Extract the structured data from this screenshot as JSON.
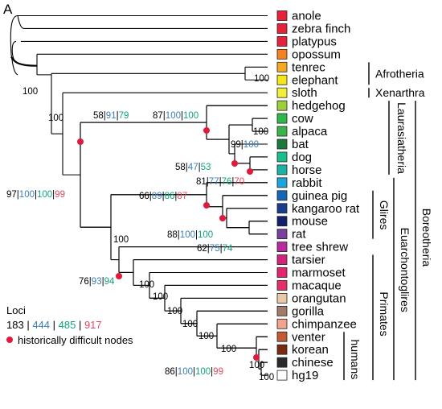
{
  "panel_label": "A",
  "colors": {
    "c183": "#000000",
    "c444": "#3b7dbd",
    "c485": "#10a37f",
    "c917": "#e8475f",
    "node_dot": "#e01a3c"
  },
  "taxa": [
    {
      "name": "anole",
      "color": "#e8203a"
    },
    {
      "name": "zebra finch",
      "color": "#e8203a"
    },
    {
      "name": "platypus",
      "color": "#e8203a"
    },
    {
      "name": "opossum",
      "color": "#f58220"
    },
    {
      "name": "tenrec",
      "color": "#f7a823"
    },
    {
      "name": "elephant",
      "color": "#f5e618"
    },
    {
      "name": "sloth",
      "color": "#f2ee3a"
    },
    {
      "name": "hedgehog",
      "color": "#9ccf3c"
    },
    {
      "name": "cow",
      "color": "#2eb84a"
    },
    {
      "name": "alpaca",
      "color": "#39b44a"
    },
    {
      "name": "bat",
      "color": "#1a7a3a"
    },
    {
      "name": "dog",
      "color": "#17c08b"
    },
    {
      "name": "horse",
      "color": "#19b3a6"
    },
    {
      "name": "rabbit",
      "color": "#1da3dd"
    },
    {
      "name": "guinea pig",
      "color": "#1466b8"
    },
    {
      "name": "kangaroo rat",
      "color": "#1a3c8c"
    },
    {
      "name": "mouse",
      "color": "#141f6e"
    },
    {
      "name": "rat",
      "color": "#7b3fa0"
    },
    {
      "name": "tree shrew",
      "color": "#b92a9d"
    },
    {
      "name": "tarsier",
      "color": "#d4237a"
    },
    {
      "name": "marmoset",
      "color": "#e4246c"
    },
    {
      "name": "macaque",
      "color": "#e62e6b"
    },
    {
      "name": "orangutan",
      "color": "#e8c9a8"
    },
    {
      "name": "gorilla",
      "color": "#a07a6a"
    },
    {
      "name": "chimpanzee",
      "color": "#f2a48c"
    },
    {
      "name": "venter",
      "color": "#c45a34"
    },
    {
      "name": "korean",
      "color": "#7a2a10"
    },
    {
      "name": "chinese",
      "color": "#2a2a2a"
    },
    {
      "name": "hg19",
      "color": "#ffffff"
    }
  ],
  "support": [
    {
      "id": "amniota",
      "values": [
        {
          "t": "100",
          "c": "c183"
        }
      ]
    },
    {
      "id": "eutheria",
      "values": [
        {
          "t": "100",
          "c": "c183"
        }
      ]
    },
    {
      "id": "afrotheria",
      "values": [
        {
          "t": "100",
          "c": "c183"
        }
      ]
    },
    {
      "id": "boreo_sloth",
      "values": [
        {
          "t": "97",
          "c": "c183"
        },
        {
          "t": "|",
          "c": "c183"
        },
        {
          "t": "100",
          "c": "c444"
        },
        {
          "t": "|",
          "c": "c183"
        },
        {
          "t": "100",
          "c": "c485"
        },
        {
          "t": "|",
          "c": "c183"
        },
        {
          "t": "99",
          "c": "c917"
        }
      ]
    },
    {
      "id": "laurasiatheria",
      "values": [
        {
          "t": "58",
          "c": "c183"
        },
        {
          "t": "|",
          "c": "c183"
        },
        {
          "t": "91",
          "c": "c444"
        },
        {
          "t": "|",
          "c": "c183"
        },
        {
          "t": "79",
          "c": "c485"
        }
      ]
    },
    {
      "id": "lauras_inner",
      "values": [
        {
          "t": "87",
          "c": "c183"
        },
        {
          "t": "|",
          "c": "c183"
        },
        {
          "t": "100",
          "c": "c444"
        },
        {
          "t": "|",
          "c": "c183"
        },
        {
          "t": "100",
          "c": "c485"
        }
      ]
    },
    {
      "id": "cow_alpaca",
      "values": [
        {
          "t": "100",
          "c": "c183"
        }
      ]
    },
    {
      "id": "bat_group",
      "values": [
        {
          "t": "99",
          "c": "c183"
        },
        {
          "t": "|",
          "c": "c183"
        },
        {
          "t": "100",
          "c": "c444"
        }
      ]
    },
    {
      "id": "bat_doghorse",
      "values": [
        {
          "t": "58",
          "c": "c183"
        },
        {
          "t": "|",
          "c": "c183"
        },
        {
          "t": "47",
          "c": "c444"
        },
        {
          "t": "|",
          "c": "c183"
        },
        {
          "t": "53",
          "c": "c485"
        }
      ]
    },
    {
      "id": "dog_horse",
      "values": [
        {
          "t": "81",
          "c": "c183"
        },
        {
          "t": "|",
          "c": "c183"
        },
        {
          "t": "77",
          "c": "c444"
        },
        {
          "t": "|",
          "c": "c183"
        },
        {
          "t": "76",
          "c": "c485"
        },
        {
          "t": "|",
          "c": "c183"
        },
        {
          "t": "70",
          "c": "c917"
        }
      ]
    },
    {
      "id": "glires",
      "values": [
        {
          "t": "66",
          "c": "c183"
        },
        {
          "t": "|",
          "c": "c183"
        },
        {
          "t": "89",
          "c": "c444"
        },
        {
          "t": "|",
          "c": "c183"
        },
        {
          "t": "86",
          "c": "c485"
        },
        {
          "t": "|",
          "c": "c183"
        },
        {
          "t": "87",
          "c": "c917"
        }
      ]
    },
    {
      "id": "rodents",
      "values": [
        {
          "t": "88",
          "c": "c183"
        },
        {
          "t": "|",
          "c": "c183"
        },
        {
          "t": "100",
          "c": "c444"
        },
        {
          "t": "|",
          "c": "c183"
        },
        {
          "t": "100",
          "c": "c485"
        }
      ]
    },
    {
      "id": "mouse_rat",
      "values": [
        {
          "t": "62",
          "c": "c183"
        },
        {
          "t": "|",
          "c": "c183"
        },
        {
          "t": "75",
          "c": "c444"
        },
        {
          "t": "|",
          "c": "c183"
        },
        {
          "t": "74",
          "c": "c485"
        }
      ]
    },
    {
      "id": "euarchontoglires",
      "values": [
        {
          "t": "100",
          "c": "c183"
        }
      ]
    },
    {
      "id": "euarchonta",
      "values": [
        {
          "t": "76",
          "c": "c183"
        },
        {
          "t": "|",
          "c": "c183"
        },
        {
          "t": "93",
          "c": "c444"
        },
        {
          "t": "|",
          "c": "c183"
        },
        {
          "t": "94",
          "c": "c485"
        }
      ]
    },
    {
      "id": "primates",
      "values": [
        {
          "t": "100",
          "c": "c183"
        }
      ]
    },
    {
      "id": "anthropoidea",
      "values": [
        {
          "t": "100",
          "c": "c183"
        }
      ]
    },
    {
      "id": "catarrhini",
      "values": [
        {
          "t": "100",
          "c": "c183"
        }
      ]
    },
    {
      "id": "hominidae",
      "values": [
        {
          "t": "100",
          "c": "c183"
        }
      ]
    },
    {
      "id": "homininae",
      "values": [
        {
          "t": "100",
          "c": "c183"
        }
      ]
    },
    {
      "id": "homo_pan",
      "values": [
        {
          "t": "100",
          "c": "c183"
        }
      ]
    },
    {
      "id": "humans",
      "values": [
        {
          "t": "86",
          "c": "c183"
        },
        {
          "t": "|",
          "c": "c183"
        },
        {
          "t": "100",
          "c": "c444"
        },
        {
          "t": "|",
          "c": "c183"
        },
        {
          "t": "100",
          "c": "c485"
        },
        {
          "t": "|",
          "c": "c183"
        },
        {
          "t": "99",
          "c": "c917"
        }
      ]
    },
    {
      "id": "human_inner1",
      "values": [
        {
          "t": "100",
          "c": "c183"
        }
      ]
    },
    {
      "id": "human_inner2",
      "values": [
        {
          "t": "100",
          "c": "c183"
        }
      ]
    }
  ],
  "groups": [
    "Afrotheria",
    "Xenarthra",
    "Laurasiatheria",
    "Glires",
    "Euarchontoglires",
    "Boreotheria",
    "Primates",
    "humans"
  ],
  "legend": {
    "title": "Loci",
    "values": [
      {
        "t": "183",
        "c": "c183"
      },
      {
        "t": " | ",
        "c": "c183"
      },
      {
        "t": "444",
        "c": "c444"
      },
      {
        "t": " | ",
        "c": "c183"
      },
      {
        "t": "485",
        "c": "c485"
      },
      {
        "t": " | ",
        "c": "c183"
      },
      {
        "t": "917",
        "c": "c917"
      }
    ],
    "dot_label": "historically difficult nodes"
  }
}
